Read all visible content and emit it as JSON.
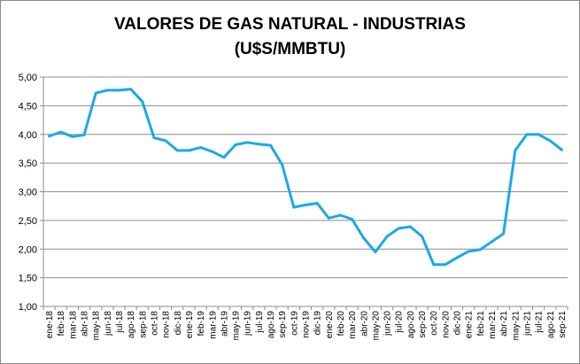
{
  "chart_data": {
    "type": "line",
    "title_line1": "VALORES DE GAS NATURAL - INDUSTRIAS",
    "title_line2": "(U$S/MMBTU)",
    "xlabel": "",
    "ylabel": "",
    "ylim": [
      1.0,
      5.0
    ],
    "yticks": [
      "1,00",
      "1,50",
      "2,00",
      "2,50",
      "3,00",
      "3,50",
      "4,00",
      "4,50",
      "5,00"
    ],
    "grid": true,
    "legend": "none",
    "line_color": "#1ba9e6",
    "categories": [
      "ene-18",
      "feb-18",
      "mar-18",
      "abr-18",
      "may-18",
      "jun-18",
      "jul-18",
      "ago-18",
      "sep-18",
      "oct-18",
      "nov-18",
      "dic-18",
      "ene-19",
      "feb-19",
      "mar-19",
      "abr-19",
      "may-19",
      "jun-19",
      "jul-19",
      "ago-19",
      "sep-19",
      "oct-19",
      "nov-19",
      "dic-19",
      "ene-20",
      "feb-20",
      "mar-20",
      "abr-20",
      "may-20",
      "jun-20",
      "jul-20",
      "ago-20",
      "sep-20",
      "oct-20",
      "nov-20",
      "dic-20",
      "ene-21",
      "feb-21",
      "mar-21",
      "abr-21",
      "may-21",
      "jun-21",
      "jul-21",
      "ago-21",
      "sep-21"
    ],
    "values": [
      3.97,
      4.04,
      3.96,
      3.99,
      4.72,
      4.77,
      4.77,
      4.79,
      4.57,
      3.94,
      3.89,
      3.72,
      3.72,
      3.77,
      3.7,
      3.6,
      3.82,
      3.86,
      3.83,
      3.81,
      3.47,
      2.73,
      2.77,
      2.8,
      2.54,
      2.59,
      2.52,
      2.19,
      1.95,
      2.22,
      2.36,
      2.39,
      2.22,
      1.73,
      1.73,
      1.85,
      1.96,
      1.99,
      2.13,
      2.27,
      3.72,
      4.0,
      4.0,
      3.89,
      3.73
    ]
  }
}
